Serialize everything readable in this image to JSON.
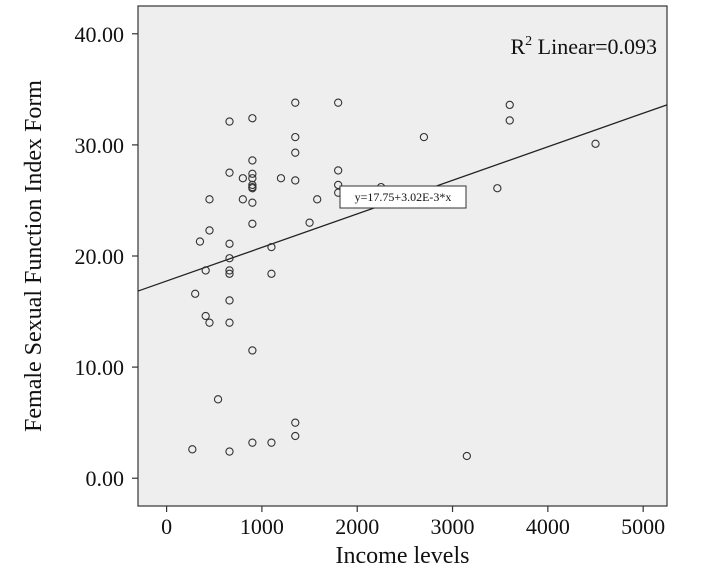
{
  "chart_data": {
    "type": "scatter",
    "xlabel": "Income levels",
    "ylabel": "Female Sexual Function Index Form",
    "xlim": [
      -300,
      5250
    ],
    "ylim": [
      -2.5,
      42.5
    ],
    "x_ticks": [
      0,
      1000,
      2000,
      3000,
      4000,
      5000
    ],
    "x_tick_labels": [
      "0",
      "1000",
      "2000",
      "3000",
      "4000",
      "5000"
    ],
    "y_ticks": [
      0,
      10,
      20,
      30,
      40
    ],
    "y_tick_labels": [
      "0.00",
      "10.00",
      "20.00",
      "30.00",
      "40.00"
    ],
    "grid": false,
    "r2_label": "Linear=0.093",
    "r2_prefix": "R",
    "r2_sup": "2",
    "equation_label": "y=17.75+3.02E-3*x",
    "fit": {
      "intercept": 17.75,
      "slope": 0.00302
    },
    "points": [
      {
        "x": 270,
        "y": 2.6
      },
      {
        "x": 660,
        "y": 2.4
      },
      {
        "x": 900,
        "y": 3.2
      },
      {
        "x": 1100,
        "y": 3.2
      },
      {
        "x": 1350,
        "y": 3.8
      },
      {
        "x": 1350,
        "y": 5.0
      },
      {
        "x": 540,
        "y": 7.1
      },
      {
        "x": 900,
        "y": 11.5
      },
      {
        "x": 660,
        "y": 14.0
      },
      {
        "x": 450,
        "y": 14.0
      },
      {
        "x": 410,
        "y": 14.6
      },
      {
        "x": 660,
        "y": 16.0
      },
      {
        "x": 300,
        "y": 16.6
      },
      {
        "x": 660,
        "y": 18.4
      },
      {
        "x": 660,
        "y": 18.7
      },
      {
        "x": 410,
        "y": 18.7
      },
      {
        "x": 1100,
        "y": 18.4
      },
      {
        "x": 660,
        "y": 19.8
      },
      {
        "x": 660,
        "y": 21.1
      },
      {
        "x": 350,
        "y": 21.3
      },
      {
        "x": 1100,
        "y": 20.8
      },
      {
        "x": 450,
        "y": 22.3
      },
      {
        "x": 900,
        "y": 22.9
      },
      {
        "x": 1500,
        "y": 23.0
      },
      {
        "x": 450,
        "y": 25.1
      },
      {
        "x": 800,
        "y": 25.1
      },
      {
        "x": 900,
        "y": 24.8
      },
      {
        "x": 1580,
        "y": 25.1
      },
      {
        "x": 1800,
        "y": 25.7
      },
      {
        "x": 2250,
        "y": 26.2
      },
      {
        "x": 900,
        "y": 26.1
      },
      {
        "x": 900,
        "y": 26.4
      },
      {
        "x": 900,
        "y": 26.2
      },
      {
        "x": 900,
        "y": 27.0
      },
      {
        "x": 900,
        "y": 27.4
      },
      {
        "x": 800,
        "y": 27.0
      },
      {
        "x": 660,
        "y": 27.5
      },
      {
        "x": 1200,
        "y": 27.0
      },
      {
        "x": 1350,
        "y": 26.8
      },
      {
        "x": 1800,
        "y": 26.4
      },
      {
        "x": 1800,
        "y": 27.7
      },
      {
        "x": 900,
        "y": 28.6
      },
      {
        "x": 1350,
        "y": 29.3
      },
      {
        "x": 1350,
        "y": 30.7
      },
      {
        "x": 660,
        "y": 32.1
      },
      {
        "x": 900,
        "y": 32.4
      },
      {
        "x": 1350,
        "y": 33.8
      },
      {
        "x": 1800,
        "y": 33.8
      },
      {
        "x": 2700,
        "y": 30.7
      },
      {
        "x": 3150,
        "y": 2.0
      },
      {
        "x": 3470,
        "y": 26.1
      },
      {
        "x": 3600,
        "y": 32.2
      },
      {
        "x": 3600,
        "y": 33.6
      },
      {
        "x": 4500,
        "y": 30.1
      }
    ]
  }
}
